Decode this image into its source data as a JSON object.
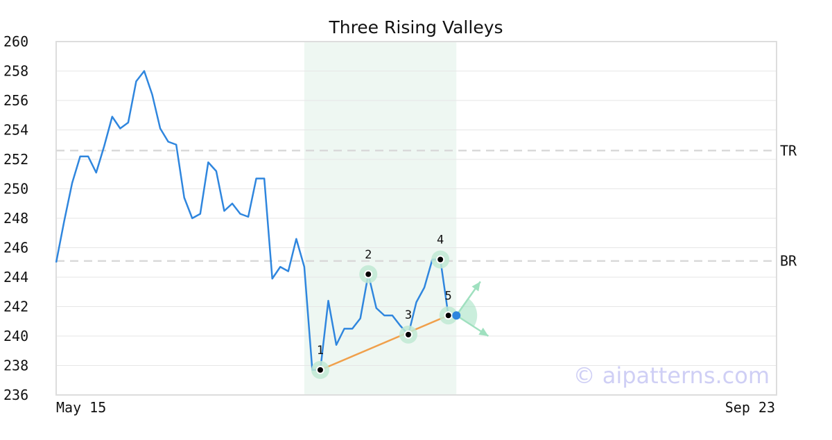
{
  "chart_data": {
    "type": "line",
    "title": "Three Rising Valleys",
    "xlabel": "",
    "ylabel": "",
    "x_tick_labels": [
      "May 15",
      "Sep 23"
    ],
    "x_range": [
      0,
      90
    ],
    "ylim": [
      236,
      260
    ],
    "y_ticks": [
      236,
      238,
      240,
      242,
      244,
      246,
      248,
      250,
      252,
      254,
      256,
      258,
      260
    ],
    "grid": "horizontal",
    "line_color": "#2f86de",
    "series": [
      {
        "values": [
          245.0,
          247.8,
          250.4,
          252.2,
          252.2,
          251.1,
          252.9,
          254.9,
          254.1,
          254.5,
          257.3,
          258.0,
          256.4,
          254.1,
          253.2,
          253.0,
          249.4,
          248.0,
          248.3,
          251.8,
          251.2,
          248.5,
          249.0,
          248.3,
          248.1,
          250.7,
          250.7,
          243.9,
          244.7,
          244.4,
          246.6,
          244.7,
          237.7,
          237.7,
          242.4,
          239.4,
          240.5,
          240.5,
          241.2,
          244.2,
          241.9,
          241.4,
          241.4,
          240.7,
          240.1,
          242.3,
          243.3,
          245.2,
          245.2,
          241.4
        ]
      }
    ],
    "highlight_region": {
      "x_start": 31,
      "x_end": 50,
      "color": "#eef7f2"
    },
    "reference_lines": [
      {
        "label": "TR",
        "y": 252.6
      },
      {
        "label": "BR",
        "y": 245.1
      }
    ],
    "points": [
      {
        "label": "1",
        "x": 33,
        "y": 237.7
      },
      {
        "label": "2",
        "x": 39,
        "y": 244.2
      },
      {
        "label": "3",
        "x": 44,
        "y": 240.1
      },
      {
        "label": "4",
        "x": 48,
        "y": 245.2
      },
      {
        "label": "5",
        "x": 49,
        "y": 241.4
      }
    ],
    "trendline": {
      "x": [
        33,
        49
      ],
      "y": [
        237.7,
        241.4
      ],
      "color": "#f0a04b"
    },
    "projection": {
      "x": 50,
      "y": 241.4,
      "up_target": [
        53,
        243.7
      ],
      "down_target": [
        54,
        240.0
      ],
      "color": "#9fe0bf"
    }
  },
  "watermark": "© aipatterns.com"
}
